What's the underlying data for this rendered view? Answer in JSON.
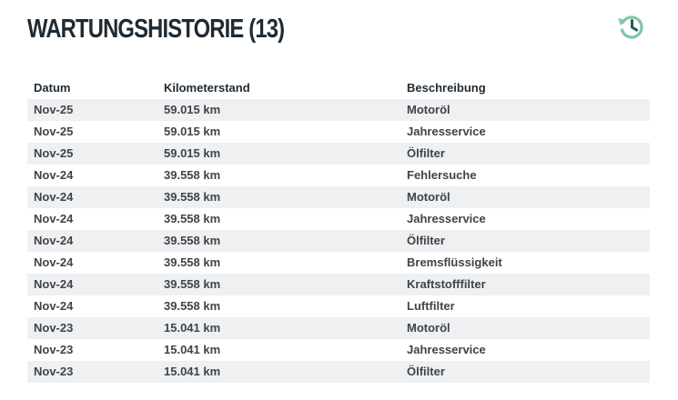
{
  "header": {
    "title": "WARTUNGSHISTORIE (13)",
    "icon": "history-clock-icon",
    "icon_color": "#7cc9a6",
    "icon_hand_color": "#1f5b55"
  },
  "table": {
    "columns": [
      "Datum",
      "Kilometerstand",
      "Beschreibung"
    ],
    "rows": [
      {
        "date": "Nov-25",
        "km": "59.015 km",
        "desc": "Motoröl"
      },
      {
        "date": "Nov-25",
        "km": "59.015 km",
        "desc": "Jahresservice"
      },
      {
        "date": "Nov-25",
        "km": "59.015 km",
        "desc": "Ölfilter"
      },
      {
        "date": "Nov-24",
        "km": "39.558 km",
        "desc": "Fehlersuche"
      },
      {
        "date": "Nov-24",
        "km": "39.558 km",
        "desc": "Motoröl"
      },
      {
        "date": "Nov-24",
        "km": "39.558 km",
        "desc": "Jahresservice"
      },
      {
        "date": "Nov-24",
        "km": "39.558 km",
        "desc": "Ölfilter"
      },
      {
        "date": "Nov-24",
        "km": "39.558 km",
        "desc": "Bremsflüssigkeit"
      },
      {
        "date": "Nov-24",
        "km": "39.558 km",
        "desc": "Kraftstofffilter"
      },
      {
        "date": "Nov-24",
        "km": "39.558 km",
        "desc": "Luftfilter"
      },
      {
        "date": "Nov-23",
        "km": "15.041 km",
        "desc": "Motoröl"
      },
      {
        "date": "Nov-23",
        "km": "15.041 km",
        "desc": "Jahresservice"
      },
      {
        "date": "Nov-23",
        "km": "15.041 km",
        "desc": "Ölfilter"
      }
    ]
  }
}
